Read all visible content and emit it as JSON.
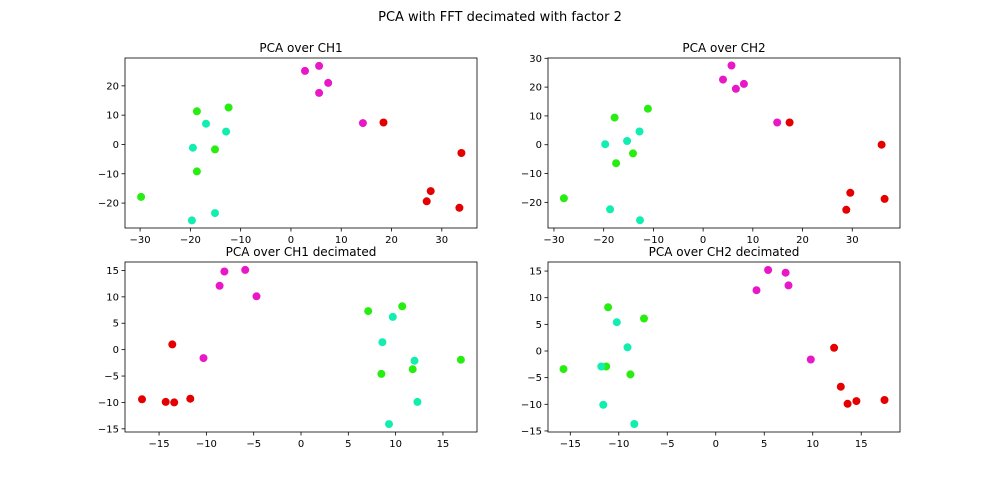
{
  "chart_data": {
    "type": "scatter",
    "title": "PCA with FFT decimated with factor 2",
    "colors": {
      "magenta": "#e817c8",
      "red": "#e40000",
      "green": "#27ee10",
      "teal": "#12edb0"
    },
    "subplots": [
      {
        "title": "PCA over CH1",
        "xlim": [
          -33,
          37
        ],
        "ylim": [
          -28.5,
          29.5
        ],
        "xticks": [
          -30,
          -20,
          -10,
          0,
          10,
          20,
          30
        ],
        "yticks": [
          -20,
          -10,
          0,
          10,
          20
        ],
        "points": [
          {
            "x": 2.8,
            "y": 25.1,
            "c": "magenta"
          },
          {
            "x": 5.6,
            "y": 26.8,
            "c": "magenta"
          },
          {
            "x": 7.4,
            "y": 21.0,
            "c": "magenta"
          },
          {
            "x": 5.6,
            "y": 17.6,
            "c": "magenta"
          },
          {
            "x": 14.3,
            "y": 7.3,
            "c": "magenta"
          },
          {
            "x": 18.4,
            "y": 7.5,
            "c": "red"
          },
          {
            "x": 33.9,
            "y": -2.9,
            "c": "red"
          },
          {
            "x": 27.8,
            "y": -15.9,
            "c": "red"
          },
          {
            "x": 27.0,
            "y": -19.4,
            "c": "red"
          },
          {
            "x": 33.5,
            "y": -21.6,
            "c": "red"
          },
          {
            "x": -18.7,
            "y": 11.3,
            "c": "green"
          },
          {
            "x": -12.4,
            "y": 12.6,
            "c": "green"
          },
          {
            "x": -15.1,
            "y": -1.7,
            "c": "green"
          },
          {
            "x": -18.7,
            "y": -9.2,
            "c": "green"
          },
          {
            "x": -29.8,
            "y": -17.9,
            "c": "green"
          },
          {
            "x": -16.9,
            "y": 7.1,
            "c": "teal"
          },
          {
            "x": -12.9,
            "y": 4.4,
            "c": "teal"
          },
          {
            "x": -19.5,
            "y": -1.1,
            "c": "teal"
          },
          {
            "x": -15.1,
            "y": -23.4,
            "c": "teal"
          },
          {
            "x": -19.7,
            "y": -25.9,
            "c": "teal"
          }
        ]
      },
      {
        "title": "PCA over CH2",
        "xlim": [
          -31.2,
          39.6
        ],
        "ylim": [
          -28.9,
          30.1
        ],
        "xticks": [
          -30,
          -20,
          -10,
          0,
          10,
          20,
          30
        ],
        "yticks": [
          -20,
          -10,
          0,
          10,
          20,
          30
        ],
        "points": [
          {
            "x": 5.7,
            "y": 27.5,
            "c": "magenta"
          },
          {
            "x": 4.0,
            "y": 22.6,
            "c": "magenta"
          },
          {
            "x": 8.2,
            "y": 21.1,
            "c": "magenta"
          },
          {
            "x": 6.6,
            "y": 19.4,
            "c": "magenta"
          },
          {
            "x": 14.9,
            "y": 7.7,
            "c": "magenta"
          },
          {
            "x": 17.4,
            "y": 7.7,
            "c": "red"
          },
          {
            "x": 35.9,
            "y": 0.0,
            "c": "red"
          },
          {
            "x": 29.6,
            "y": -16.7,
            "c": "red"
          },
          {
            "x": 36.5,
            "y": -18.8,
            "c": "red"
          },
          {
            "x": 28.8,
            "y": -22.6,
            "c": "red"
          },
          {
            "x": -11.1,
            "y": 12.5,
            "c": "green"
          },
          {
            "x": -17.8,
            "y": 9.4,
            "c": "green"
          },
          {
            "x": -14.1,
            "y": -3.0,
            "c": "green"
          },
          {
            "x": -17.5,
            "y": -6.4,
            "c": "green"
          },
          {
            "x": -28.0,
            "y": -18.6,
            "c": "green"
          },
          {
            "x": -12.8,
            "y": 4.6,
            "c": "teal"
          },
          {
            "x": -15.3,
            "y": 1.3,
            "c": "teal"
          },
          {
            "x": -19.7,
            "y": 0.2,
            "c": "teal"
          },
          {
            "x": -18.7,
            "y": -22.4,
            "c": "teal"
          },
          {
            "x": -12.7,
            "y": -26.2,
            "c": "teal"
          }
        ]
      },
      {
        "title": "PCA over CH1 decimated",
        "xlim": [
          -18.6,
          18.6
        ],
        "ylim": [
          -15.6,
          16.6
        ],
        "xticks": [
          -15,
          -10,
          -5,
          0,
          5,
          10,
          15
        ],
        "yticks": [
          -15,
          -10,
          -5,
          0,
          5,
          10,
          15
        ],
        "points": [
          {
            "x": -8.1,
            "y": 14.8,
            "c": "magenta"
          },
          {
            "x": -5.9,
            "y": 15.1,
            "c": "magenta"
          },
          {
            "x": -8.6,
            "y": 12.1,
            "c": "magenta"
          },
          {
            "x": -4.7,
            "y": 10.1,
            "c": "magenta"
          },
          {
            "x": -10.3,
            "y": -1.6,
            "c": "magenta"
          },
          {
            "x": -13.6,
            "y": 1.0,
            "c": "red"
          },
          {
            "x": -16.8,
            "y": -9.4,
            "c": "red"
          },
          {
            "x": -14.3,
            "y": -9.9,
            "c": "red"
          },
          {
            "x": -13.4,
            "y": -10.0,
            "c": "red"
          },
          {
            "x": -11.7,
            "y": -9.3,
            "c": "red"
          },
          {
            "x": 7.1,
            "y": 7.3,
            "c": "green"
          },
          {
            "x": 10.7,
            "y": 8.2,
            "c": "green"
          },
          {
            "x": 16.9,
            "y": -1.9,
            "c": "green"
          },
          {
            "x": 11.8,
            "y": -3.7,
            "c": "green"
          },
          {
            "x": 8.5,
            "y": -4.6,
            "c": "green"
          },
          {
            "x": 9.7,
            "y": 6.2,
            "c": "teal"
          },
          {
            "x": 8.6,
            "y": 1.4,
            "c": "teal"
          },
          {
            "x": 12.0,
            "y": -2.1,
            "c": "teal"
          },
          {
            "x": 12.3,
            "y": -9.9,
            "c": "teal"
          },
          {
            "x": 9.3,
            "y": -14.1,
            "c": "teal"
          }
        ]
      },
      {
        "title": "PCA over CH2 decimated",
        "xlim": [
          -17.3,
          19.0
        ],
        "ylim": [
          -15.2,
          16.7
        ],
        "xticks": [
          -15,
          -10,
          -5,
          0,
          5,
          10,
          15
        ],
        "yticks": [
          -15,
          -10,
          -5,
          0,
          5,
          10,
          15
        ],
        "points": [
          {
            "x": 5.4,
            "y": 15.2,
            "c": "magenta"
          },
          {
            "x": 7.2,
            "y": 14.7,
            "c": "magenta"
          },
          {
            "x": 7.5,
            "y": 12.3,
            "c": "magenta"
          },
          {
            "x": 4.2,
            "y": 11.4,
            "c": "magenta"
          },
          {
            "x": 9.8,
            "y": -1.6,
            "c": "magenta"
          },
          {
            "x": 12.2,
            "y": 0.6,
            "c": "red"
          },
          {
            "x": 12.9,
            "y": -6.7,
            "c": "red"
          },
          {
            "x": 13.6,
            "y": -9.9,
            "c": "red"
          },
          {
            "x": 14.5,
            "y": -9.4,
            "c": "red"
          },
          {
            "x": 17.4,
            "y": -9.2,
            "c": "red"
          },
          {
            "x": -11.1,
            "y": 8.2,
            "c": "green"
          },
          {
            "x": -7.4,
            "y": 6.1,
            "c": "green"
          },
          {
            "x": -11.3,
            "y": -2.9,
            "c": "green"
          },
          {
            "x": -15.7,
            "y": -3.4,
            "c": "green"
          },
          {
            "x": -8.8,
            "y": -4.4,
            "c": "green"
          },
          {
            "x": -10.2,
            "y": 5.4,
            "c": "teal"
          },
          {
            "x": -9.1,
            "y": 0.7,
            "c": "teal"
          },
          {
            "x": -11.8,
            "y": -2.9,
            "c": "teal"
          },
          {
            "x": -11.6,
            "y": -10.1,
            "c": "teal"
          },
          {
            "x": -8.4,
            "y": -13.7,
            "c": "teal"
          }
        ]
      }
    ]
  }
}
